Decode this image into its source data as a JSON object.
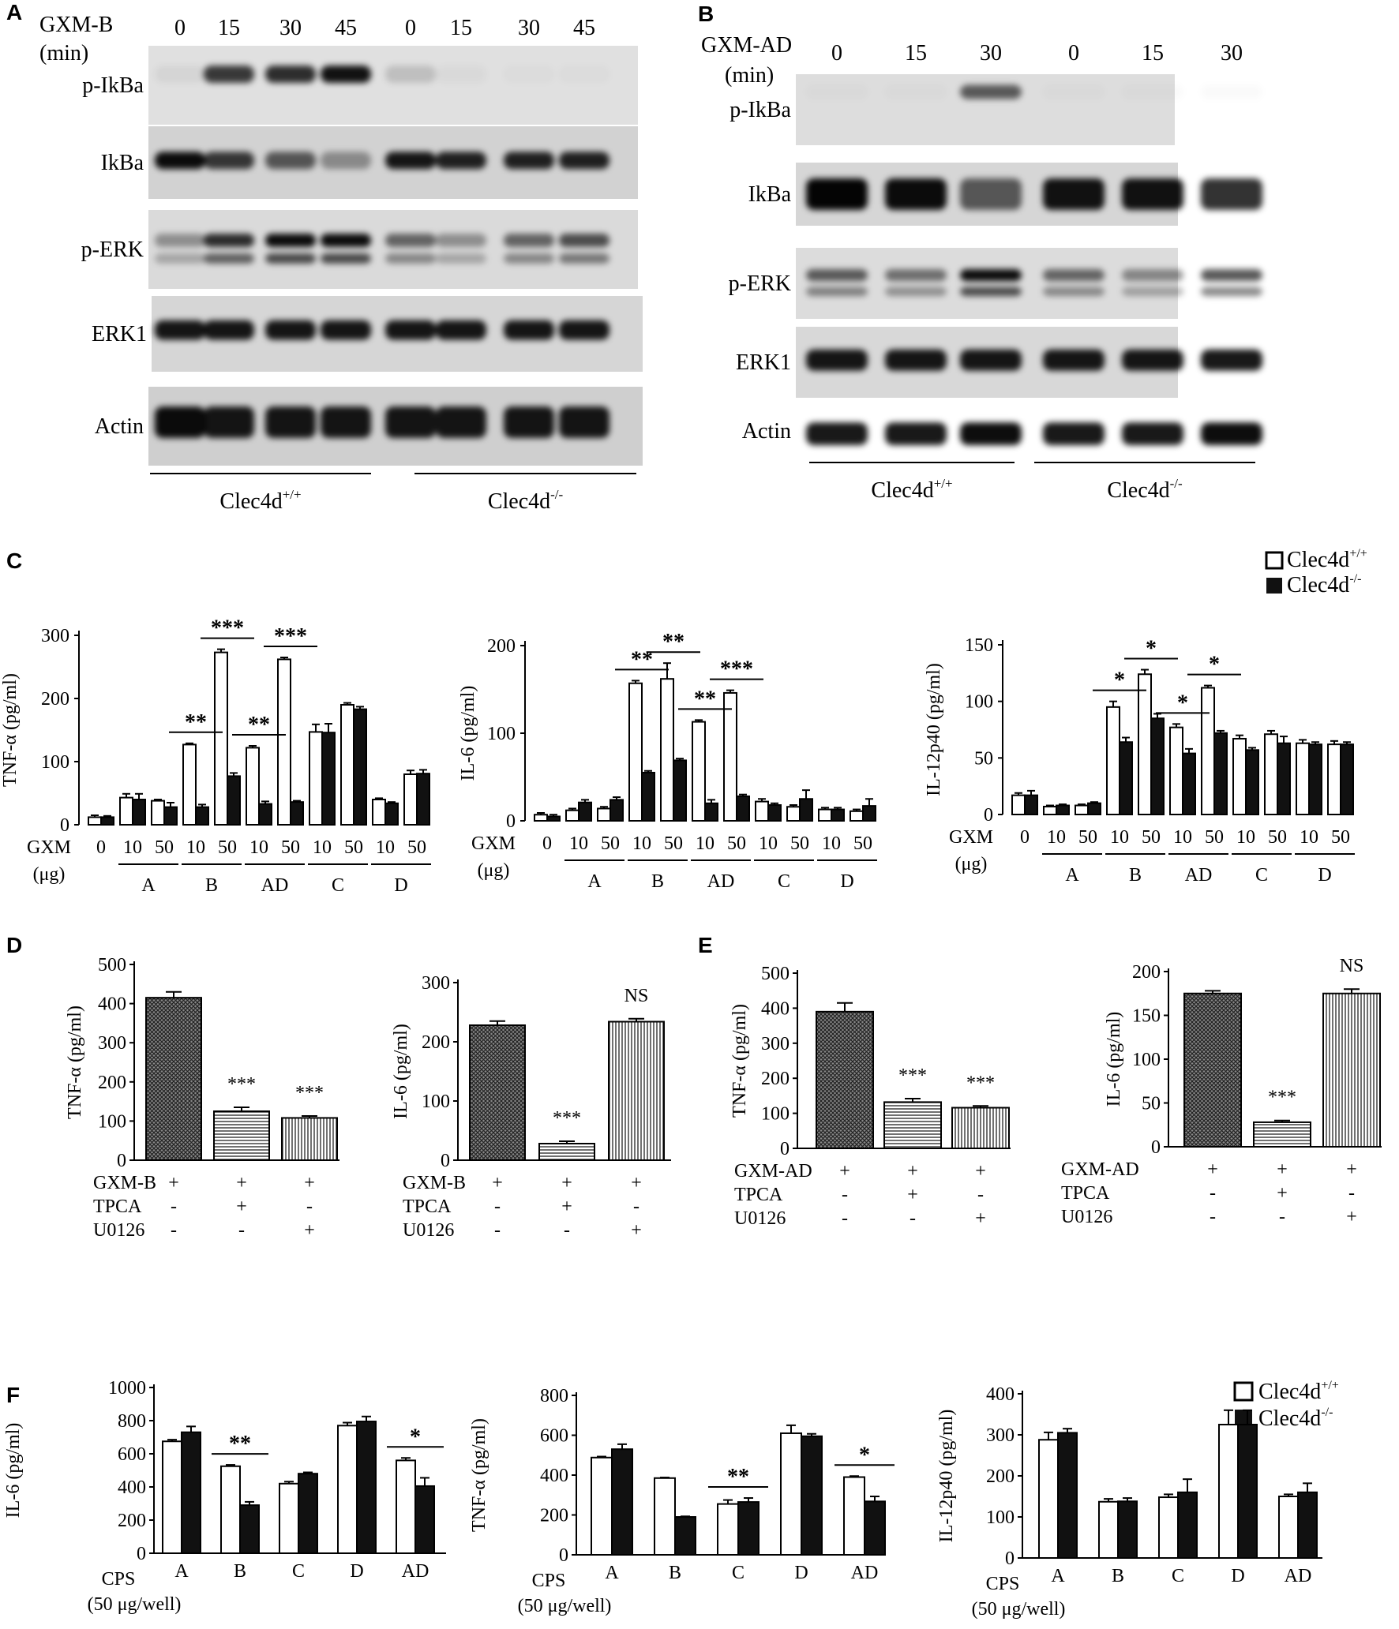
{
  "figure": {
    "panels": {
      "A": "A",
      "B": "B",
      "C": "C",
      "D": "D",
      "E": "E",
      "F": "F"
    }
  },
  "blot_a": {
    "treatment_label": "GXM-B",
    "unit_label": "(min)",
    "times": [
      "0",
      "15",
      "30",
      "45",
      "0",
      "15",
      "30",
      "45"
    ],
    "groups": [
      "Clec4d+/+",
      "Clec4d-/-"
    ],
    "groups_base": "Clec4d",
    "groups_sup": [
      "+/+",
      "-/-"
    ],
    "rows": [
      {
        "label": "p-IkBa",
        "intensity": [
          0.05,
          0.75,
          0.8,
          0.92,
          0.15,
          0.03,
          0.02,
          0.02
        ]
      },
      {
        "label": "IkBa",
        "intensity": [
          0.95,
          0.75,
          0.6,
          0.35,
          0.9,
          0.85,
          0.85,
          0.85
        ]
      },
      {
        "label": "p-ERK",
        "intensity": [
          0.35,
          0.8,
          0.95,
          0.95,
          0.55,
          0.35,
          0.55,
          0.65
        ]
      },
      {
        "label": "ERK1",
        "intensity": [
          0.9,
          0.9,
          0.9,
          0.9,
          0.9,
          0.9,
          0.9,
          0.9
        ]
      },
      {
        "label": "Actin",
        "intensity": [
          0.95,
          0.9,
          0.9,
          0.9,
          0.9,
          0.9,
          0.9,
          0.9
        ]
      }
    ]
  },
  "blot_b": {
    "treatment_label": "GXM-AD",
    "unit_label": "(min)",
    "times": [
      "0",
      "15",
      "30",
      "0",
      "15",
      "30"
    ],
    "groups": [
      "Clec4d+/+",
      "Clec4d-/-"
    ],
    "groups_base": "Clec4d",
    "groups_sup": [
      "+/+",
      "-/-"
    ],
    "rows": [
      {
        "label": "p-IkBa",
        "intensity": [
          0.02,
          0.02,
          0.6,
          0.02,
          0.02,
          0.02
        ]
      },
      {
        "label": "IkBa",
        "intensity": [
          0.98,
          0.95,
          0.6,
          0.92,
          0.92,
          0.8
        ]
      },
      {
        "label": "p-ERK",
        "intensity": [
          0.6,
          0.5,
          0.95,
          0.55,
          0.4,
          0.65
        ]
      },
      {
        "label": "ERK1",
        "intensity": [
          0.9,
          0.9,
          0.9,
          0.9,
          0.9,
          0.9
        ]
      },
      {
        "label": "Actin",
        "intensity": [
          0.9,
          0.9,
          0.95,
          0.9,
          0.9,
          0.95
        ]
      }
    ]
  },
  "legend": {
    "wt_base": "Clec4d",
    "wt_sup": "+/+",
    "ko_base": "Clec4d",
    "ko_sup": "-/-",
    "wt_color": "#ffffff",
    "ko_color": "#111111"
  },
  "chart_data": [
    {
      "id": "C1",
      "type": "bar",
      "ylabel": "TNF-α (pg/ml)",
      "ylim": [
        0,
        300
      ],
      "yticks": [
        0,
        100,
        200,
        300
      ],
      "x_title": "GXM",
      "x_unit": "(μg)",
      "doses": [
        "0",
        "10",
        "50",
        "10",
        "50",
        "10",
        "50",
        "10",
        "50",
        "10",
        "50"
      ],
      "groups": [
        "A",
        "B",
        "AD",
        "C",
        "D"
      ],
      "series": [
        {
          "name": "Clec4d+/+",
          "values": [
            12,
            43,
            38,
            127,
            273,
            122,
            262,
            147,
            190,
            40,
            80
          ]
        },
        {
          "name": "Clec4d-/-",
          "values": [
            12,
            40,
            28,
            28,
            77,
            33,
            36,
            146,
            183,
            34,
            81
          ]
        }
      ],
      "errors": [
        [
          3,
          6,
          2,
          2,
          5,
          3,
          3,
          12,
          3,
          2,
          6
        ],
        [
          2,
          9,
          7,
          4,
          5,
          4,
          2,
          14,
          4,
          2,
          6
        ]
      ],
      "sig": [
        {
          "from": 3,
          "to": 3,
          "label": "**"
        },
        {
          "from": 4,
          "to": 4,
          "label": "***"
        },
        {
          "from": 5,
          "to": 5,
          "label": "**"
        },
        {
          "from": 6,
          "to": 6,
          "label": "***"
        }
      ]
    },
    {
      "id": "C2",
      "type": "bar",
      "ylabel": "IL-6 (pg/ml)",
      "ylim": [
        0,
        200
      ],
      "yticks": [
        0,
        100,
        200
      ],
      "x_title": "GXM",
      "x_unit": "(μg)",
      "doses": [
        "0",
        "10",
        "50",
        "10",
        "50",
        "10",
        "50",
        "10",
        "50",
        "10",
        "50"
      ],
      "groups": [
        "A",
        "B",
        "AD",
        "C",
        "D"
      ],
      "series": [
        {
          "name": "Clec4d+/+",
          "values": [
            7,
            12,
            14,
            157,
            162,
            113,
            146,
            22,
            16,
            13,
            11
          ]
        },
        {
          "name": "Clec4d-/-",
          "values": [
            5,
            21,
            24,
            55,
            69,
            20,
            28,
            18,
            25,
            13,
            17
          ]
        }
      ],
      "errors": [
        [
          2,
          2,
          2,
          3,
          18,
          2,
          3,
          3,
          2,
          2,
          2
        ],
        [
          2,
          3,
          3,
          2,
          2,
          4,
          2,
          2,
          10,
          2,
          8
        ]
      ],
      "sig": [
        {
          "from": 3,
          "to": 3,
          "label": "**"
        },
        {
          "from": 4,
          "to": 4,
          "label": "**"
        },
        {
          "from": 5,
          "to": 5,
          "label": "**"
        },
        {
          "from": 6,
          "to": 6,
          "label": "***"
        }
      ]
    },
    {
      "id": "C3",
      "type": "bar",
      "ylabel": "IL-12p40 (pg/ml)",
      "ylim": [
        0,
        150
      ],
      "yticks": [
        0,
        50,
        100,
        150
      ],
      "x_title": "GXM",
      "x_unit": "(μg)",
      "doses": [
        "0",
        "10",
        "50",
        "10",
        "50",
        "10",
        "50",
        "10",
        "50",
        "10",
        "50"
      ],
      "groups": [
        "A",
        "B",
        "AD",
        "C",
        "D"
      ],
      "series": [
        {
          "name": "Clec4d+/+",
          "values": [
            17,
            7,
            8,
            95,
            124,
            77,
            112,
            67,
            71,
            63,
            62
          ]
        },
        {
          "name": "Clec4d-/-",
          "values": [
            17,
            8,
            10,
            64,
            85,
            54,
            72,
            57,
            63,
            62,
            62
          ]
        }
      ],
      "errors": [
        [
          2,
          1,
          1,
          5,
          4,
          3,
          2,
          3,
          3,
          3,
          3
        ],
        [
          4,
          1,
          1,
          4,
          4,
          4,
          2,
          2,
          6,
          2,
          2
        ]
      ],
      "sig": [
        {
          "from": 3,
          "to": 3,
          "label": "*"
        },
        {
          "from": 4,
          "to": 4,
          "label": "*"
        },
        {
          "from": 5,
          "to": 5,
          "label": "*"
        },
        {
          "from": 6,
          "to": 6,
          "label": "*"
        }
      ]
    },
    {
      "id": "D1",
      "type": "bar",
      "ylabel": "TNF-α (pg/ml)",
      "ylim": [
        0,
        500
      ],
      "yticks": [
        0,
        100,
        200,
        300,
        400,
        500
      ],
      "values": [
        415,
        125,
        108
      ],
      "errors": [
        15,
        10,
        5
      ],
      "sig": [
        "",
        "***",
        "***"
      ],
      "rows": [
        {
          "label": "GXM-B",
          "marks": [
            "+",
            "+",
            "+"
          ]
        },
        {
          "label": "TPCA",
          "marks": [
            "-",
            "+",
            "-"
          ]
        },
        {
          "label": "U0126",
          "marks": [
            "-",
            "-",
            "+"
          ]
        }
      ]
    },
    {
      "id": "D2",
      "type": "bar",
      "ylabel": "IL-6 (pg/ml)",
      "ylim": [
        0,
        300
      ],
      "yticks": [
        0,
        100,
        200,
        300
      ],
      "values": [
        228,
        28,
        234
      ],
      "errors": [
        7,
        4,
        5
      ],
      "sig": [
        "",
        "***",
        "NS"
      ],
      "rows": [
        {
          "label": "GXM-B",
          "marks": [
            "+",
            "+",
            "+"
          ]
        },
        {
          "label": "TPCA",
          "marks": [
            "-",
            "+",
            "-"
          ]
        },
        {
          "label": "U0126",
          "marks": [
            "-",
            "-",
            "+"
          ]
        }
      ]
    },
    {
      "id": "E1",
      "type": "bar",
      "ylabel": "TNF-α (pg/ml)",
      "ylim": [
        0,
        500
      ],
      "yticks": [
        0,
        100,
        200,
        300,
        400,
        500
      ],
      "values": [
        390,
        132,
        116
      ],
      "errors": [
        25,
        10,
        5
      ],
      "sig": [
        "",
        "***",
        "***"
      ],
      "rows": [
        {
          "label": "GXM-AD",
          "marks": [
            "+",
            "+",
            "+"
          ]
        },
        {
          "label": "TPCA",
          "marks": [
            "-",
            "+",
            "-"
          ]
        },
        {
          "label": "U0126",
          "marks": [
            "-",
            "-",
            "+"
          ]
        }
      ]
    },
    {
      "id": "E2",
      "type": "bar",
      "ylabel": "IL-6 (pg/ml)",
      "ylim": [
        0,
        200
      ],
      "yticks": [
        0,
        50,
        100,
        150,
        200
      ],
      "values": [
        175,
        28,
        175
      ],
      "errors": [
        3,
        2,
        5
      ],
      "sig": [
        "",
        "***",
        "NS"
      ],
      "rows": [
        {
          "label": "GXM-AD",
          "marks": [
            "+",
            "+",
            "+"
          ]
        },
        {
          "label": "TPCA",
          "marks": [
            "-",
            "+",
            "-"
          ]
        },
        {
          "label": "U0126",
          "marks": [
            "-",
            "-",
            "+"
          ]
        }
      ]
    },
    {
      "id": "F1",
      "type": "bar",
      "ylabel": "IL-6  (pg/ml)",
      "ylim": [
        0,
        1000
      ],
      "yticks": [
        0,
        200,
        400,
        600,
        800,
        1000
      ],
      "x_title": "CPS",
      "x_unit": "(50 μg/well)",
      "categories": [
        "A",
        "B",
        "C",
        "D",
        "AD"
      ],
      "series": [
        {
          "name": "Clec4d+/+",
          "values": [
            675,
            525,
            420,
            770,
            560
          ]
        },
        {
          "name": "Clec4d-/-",
          "values": [
            730,
            290,
            480,
            795,
            405
          ]
        }
      ],
      "errors": [
        [
          10,
          8,
          12,
          18,
          15
        ],
        [
          35,
          20,
          8,
          30,
          50
        ]
      ],
      "sig": [
        {
          "index": 1,
          "label": "**"
        },
        {
          "index": 4,
          "label": "*"
        }
      ]
    },
    {
      "id": "F2",
      "type": "bar",
      "ylabel": "TNF-α  (pg/ml)",
      "ylim": [
        0,
        800
      ],
      "yticks": [
        0,
        200,
        400,
        600,
        800
      ],
      "x_title": "CPS",
      "x_unit": "(50 μg/well)",
      "categories": [
        "A",
        "B",
        "C",
        "D",
        "AD"
      ],
      "series": [
        {
          "name": "Clec4d+/+",
          "values": [
            488,
            385,
            255,
            610,
            390
          ]
        },
        {
          "name": "Clec4d-/-",
          "values": [
            530,
            190,
            265,
            595,
            268
          ]
        }
      ],
      "errors": [
        [
          5,
          3,
          20,
          40,
          5
        ],
        [
          25,
          3,
          20,
          12,
          25
        ]
      ],
      "sig": [
        {
          "index": 2,
          "label": "**"
        },
        {
          "index": 4,
          "label": "*"
        }
      ]
    },
    {
      "id": "F3",
      "type": "bar",
      "ylabel": "IL-12p40  (pg/ml)",
      "ylim": [
        0,
        400
      ],
      "yticks": [
        0,
        100,
        200,
        300,
        400
      ],
      "x_title": "CPS",
      "x_unit": "(50 μg/well)",
      "categories": [
        "A",
        "B",
        "C",
        "D",
        "AD"
      ],
      "series": [
        {
          "name": "Clec4d+/+",
          "values": [
            288,
            137,
            148,
            325,
            150
          ]
        },
        {
          "name": "Clec4d-/-",
          "values": [
            305,
            138,
            160,
            325,
            160
          ]
        }
      ],
      "errors": [
        [
          18,
          7,
          7,
          35,
          5
        ],
        [
          10,
          8,
          32,
          35,
          22
        ]
      ],
      "sig": []
    }
  ]
}
